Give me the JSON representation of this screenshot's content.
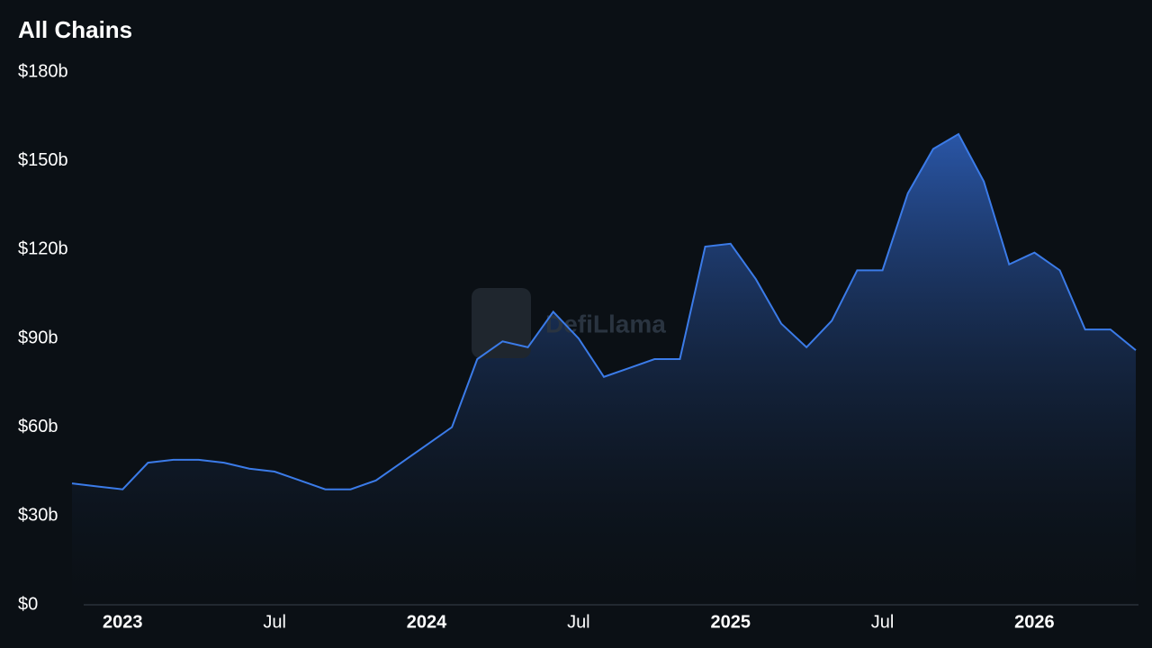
{
  "chart_data": {
    "type": "area",
    "title": "All Chains",
    "watermark": "DefiLlama",
    "x": [
      "2022-11",
      "2022-12",
      "2023-01",
      "2023-02",
      "2023-03",
      "2023-04",
      "2023-05",
      "2023-06",
      "2023-07",
      "2023-08",
      "2023-09",
      "2023-10",
      "2023-11",
      "2023-12",
      "2024-01",
      "2024-02",
      "2024-03",
      "2024-04",
      "2024-05",
      "2024-06",
      "2024-07",
      "2024-08",
      "2024-09",
      "2024-10",
      "2024-11",
      "2024-12",
      "2025-01",
      "2025-02",
      "2025-03",
      "2025-04",
      "2025-05",
      "2025-06",
      "2025-07",
      "2025-08",
      "2025-09",
      "2025-10",
      "2025-11",
      "2025-12",
      "2026-01",
      "2026-02",
      "2026-03",
      "2026-04",
      "2026-05"
    ],
    "values": [
      41,
      40,
      39,
      48,
      49,
      49,
      48,
      46,
      45,
      42,
      39,
      39,
      42,
      48,
      54,
      60,
      83,
      89,
      87,
      99,
      90,
      77,
      80,
      83,
      83,
      121,
      122,
      110,
      95,
      87,
      96,
      113,
      113,
      139,
      154,
      159,
      143,
      115,
      119,
      113,
      93,
      93,
      86
    ],
    "color": "#3b7be8",
    "xlim": [
      "2022-11",
      "2026-05"
    ],
    "xticks": [
      {
        "value": "2023-01",
        "label": "2023"
      },
      {
        "value": "2023-07",
        "label": "Jul"
      },
      {
        "value": "2024-01",
        "label": "2024"
      },
      {
        "value": "2024-07",
        "label": "Jul"
      },
      {
        "value": "2025-01",
        "label": "2025"
      },
      {
        "value": "2025-07",
        "label": "Jul"
      },
      {
        "value": "2026-01",
        "label": "2026"
      }
    ],
    "ylim": [
      0,
      180
    ],
    "yticks": [
      {
        "value": 0,
        "label": "$0"
      },
      {
        "value": 30,
        "label": "$30b"
      },
      {
        "value": 60,
        "label": "$60b"
      },
      {
        "value": 90,
        "label": "$90b"
      },
      {
        "value": 120,
        "label": "$120b"
      },
      {
        "value": 150,
        "label": "$150b"
      },
      {
        "value": 180,
        "label": "$180b"
      }
    ]
  }
}
